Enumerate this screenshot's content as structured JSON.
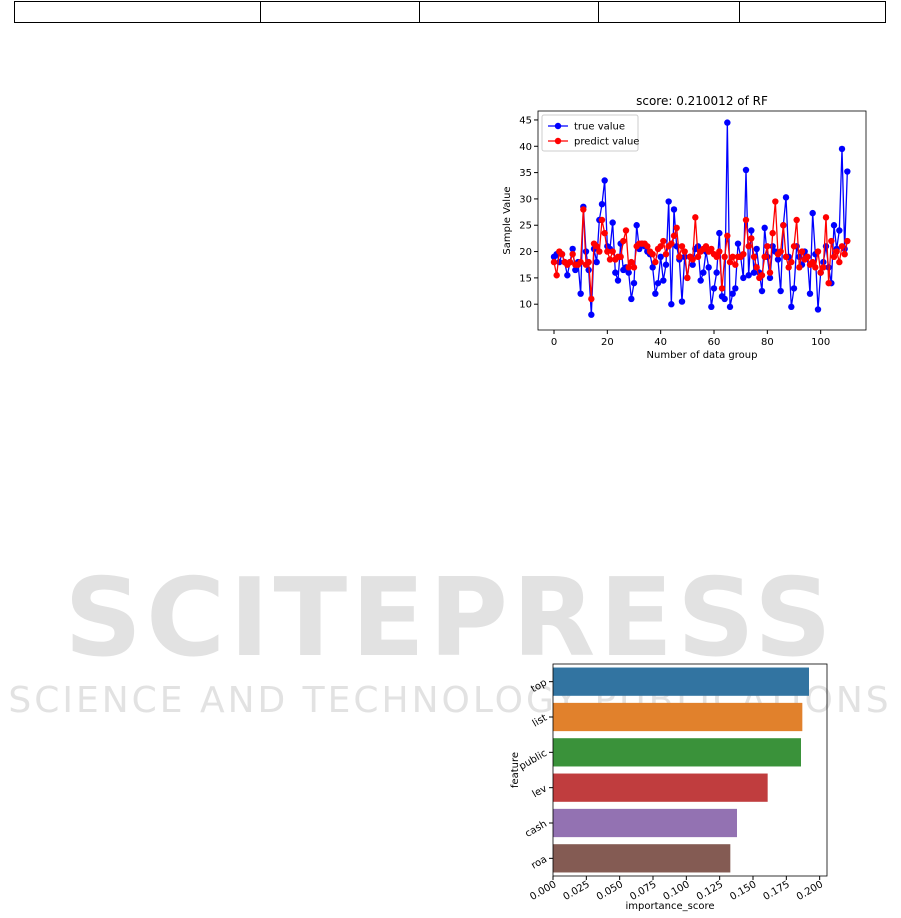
{
  "watermark": {
    "title": "SCITEPRESS",
    "subtitle": "SCIENCE AND TECHNOLOGY PUBLICATIONS"
  },
  "chart_data": [
    {
      "type": "line",
      "title": "score: 0.210012 of RF",
      "x_label": "Number of data group",
      "y_label": "Sample Value",
      "x": [
        0,
        1,
        2,
        3,
        4,
        5,
        6,
        7,
        8,
        9,
        10,
        11,
        12,
        13,
        14,
        15,
        16,
        17,
        18,
        19,
        20,
        21,
        22,
        23,
        24,
        25,
        26,
        27,
        28,
        29,
        30,
        31,
        32,
        33,
        34,
        35,
        36,
        37,
        38,
        39,
        40,
        41,
        42,
        43,
        44,
        45,
        46,
        47,
        48,
        49,
        50,
        51,
        52,
        53,
        54,
        55,
        56,
        57,
        58,
        59,
        60,
        61,
        62,
        63,
        64,
        65,
        66,
        67,
        68,
        69,
        70,
        71,
        72,
        73,
        74,
        75,
        76,
        77,
        78,
        79,
        80,
        81,
        82,
        83,
        84,
        85,
        86,
        87,
        88,
        89,
        90,
        91,
        92,
        93,
        94,
        95,
        96,
        97,
        98,
        99,
        100,
        101,
        102,
        103,
        104,
        105,
        106,
        107,
        108,
        109,
        110
      ],
      "series": [
        {
          "name": "true value",
          "color": "#0000ff",
          "values": [
            19,
            19.5,
            18,
            19.5,
            18,
            15.5,
            18,
            20.5,
            16.5,
            18,
            12,
            28.5,
            20,
            16.5,
            8,
            20.5,
            18,
            26,
            29,
            33.5,
            21,
            20.5,
            25.5,
            16,
            14.5,
            21.5,
            16.5,
            17,
            16,
            11,
            14,
            25,
            20.5,
            21.5,
            21,
            20,
            19.5,
            17,
            12,
            14,
            19,
            14.5,
            17.5,
            29.5,
            10,
            28,
            21,
            18.5,
            10.5,
            19,
            15,
            19,
            17.5,
            20.5,
            21,
            14.5,
            16,
            20,
            17,
            9.5,
            13,
            16,
            23.5,
            11.5,
            11,
            44.5,
            9.5,
            12,
            13,
            21.5,
            19,
            15,
            35.5,
            15.5,
            24,
            16,
            20.5,
            16,
            12.5,
            24.5,
            19,
            15,
            21,
            20,
            18.5,
            12.5,
            25,
            30.3,
            19,
            9.5,
            13,
            21,
            19,
            17.5,
            20,
            19,
            12,
            27.3,
            19.5,
            9,
            16,
            18,
            21,
            17,
            14,
            25,
            20.5,
            24,
            39.5,
            20.5,
            35.2
          ]
        },
        {
          "name": "predict value",
          "color": "#ff0000",
          "values": [
            18,
            15.5,
            20,
            19.5,
            18,
            17.5,
            18,
            19.5,
            17.5,
            17.5,
            18,
            28,
            17.5,
            18,
            11,
            21.5,
            21,
            20,
            26,
            23.5,
            20,
            18.5,
            20,
            18.5,
            19,
            19,
            22,
            24,
            17,
            18,
            17,
            21,
            21.5,
            21.5,
            21.5,
            21,
            20,
            19.5,
            18,
            20.5,
            21,
            22,
            19.5,
            21,
            21.5,
            23,
            24.5,
            19,
            21,
            20,
            15,
            19,
            18.5,
            26.5,
            19,
            20,
            20.5,
            21,
            20,
            20.5,
            19.5,
            19,
            20,
            13,
            19,
            23,
            18,
            19,
            17.5,
            19,
            19,
            19.5,
            26,
            21,
            22.5,
            19,
            17,
            15,
            15.5,
            19,
            21,
            16,
            23.5,
            29.5,
            19.5,
            20,
            25,
            19,
            17,
            18,
            21,
            26,
            17,
            20,
            18.5,
            19,
            17.5,
            18,
            17,
            20,
            16,
            17,
            26.5,
            14,
            22,
            19,
            20,
            18,
            21,
            19.5,
            22
          ]
        }
      ],
      "xlim": [
        -6,
        117
      ],
      "ylim": [
        5.1,
        46.7
      ],
      "xticks": [
        0,
        20,
        40,
        60,
        80,
        100
      ],
      "yticks": [
        10,
        15,
        20,
        25,
        30,
        35,
        40,
        45
      ],
      "legend": "upper-left",
      "grid": false
    },
    {
      "type": "barh",
      "x_label": "importance_score",
      "y_label": "feature",
      "categories": [
        "top",
        "list",
        "public",
        "lev",
        "cash",
        "roa"
      ],
      "values": [
        0.192,
        0.187,
        0.186,
        0.161,
        0.138,
        0.133
      ],
      "colors": [
        "#3274a1",
        "#e1812c",
        "#3a923a",
        "#c03d3e",
        "#9372b2",
        "#845b53"
      ],
      "xlim": [
        0,
        0.2055
      ],
      "xticks": [
        {
          "value": 0,
          "label": "0.000"
        },
        {
          "value": 0.025,
          "label": "0.025"
        },
        {
          "value": 0.05,
          "label": "0.050"
        },
        {
          "value": 0.075,
          "label": "0.075"
        },
        {
          "value": 0.1,
          "label": "0.100"
        },
        {
          "value": 0.125,
          "label": "0.125"
        },
        {
          "value": 0.15,
          "label": "0.150"
        },
        {
          "value": 0.175,
          "label": "0.175"
        },
        {
          "value": 0.2,
          "label": "0.200"
        }
      ]
    }
  ]
}
